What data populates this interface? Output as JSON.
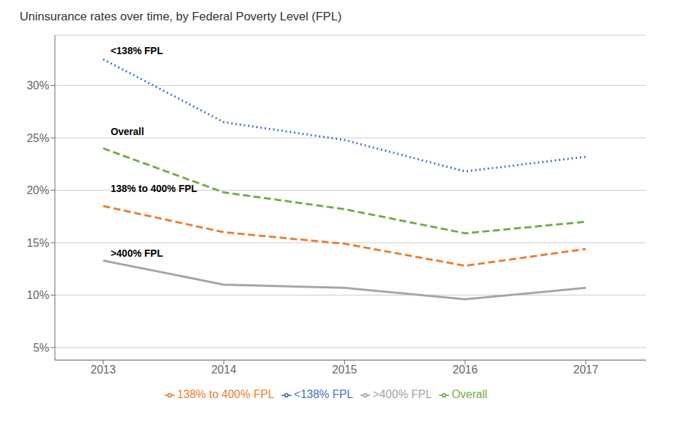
{
  "chart_data": {
    "type": "line",
    "title": "Uninsurance rates over time, by Federal Poverty Level (FPL)",
    "x": [
      2013,
      2014,
      2015,
      2016,
      2017
    ],
    "series": [
      {
        "name": "<138% FPL",
        "color": "#4472C4",
        "line_style": "dotted",
        "values": [
          0.325,
          0.265,
          0.248,
          0.218,
          0.232
        ]
      },
      {
        "name": "138% to 400% FPL",
        "color": "#ED7D31",
        "line_style": "dashed",
        "values": [
          0.185,
          0.16,
          0.149,
          0.128,
          0.144
        ]
      },
      {
        "name": ">400% FPL",
        "color": "#A5A5A5",
        "line_style": "solid",
        "values": [
          0.133,
          0.11,
          0.107,
          0.096,
          0.107
        ]
      },
      {
        "name": "Overall",
        "color": "#70AD47",
        "line_style": "dashed",
        "values": [
          0.24,
          0.198,
          0.182,
          0.159,
          0.17
        ]
      }
    ],
    "annotations": [
      {
        "text": "<138% FPL",
        "x": 2013.05,
        "y": 0.333
      },
      {
        "text": "Overall",
        "x": 2013.05,
        "y": 0.256
      },
      {
        "text": "138% to 400% FPL",
        "x": 2013.05,
        "y": 0.202
      },
      {
        "text": ">400% FPL",
        "x": 2013.05,
        "y": 0.14
      }
    ],
    "xlim": [
      2012.6,
      2017.5
    ],
    "xticks": [
      2013,
      2014,
      2015,
      2016,
      2017
    ],
    "ylim": [
      0.038,
      0.348
    ],
    "yticks": [
      {
        "value": 0.05,
        "label": "5%"
      },
      {
        "value": 0.1,
        "label": "10%"
      },
      {
        "value": 0.15,
        "label": "15%"
      },
      {
        "value": 0.2,
        "label": "20%"
      },
      {
        "value": 0.25,
        "label": "25%"
      },
      {
        "value": 0.3,
        "label": "30%"
      }
    ],
    "grid": "y",
    "legend": "bottom"
  }
}
